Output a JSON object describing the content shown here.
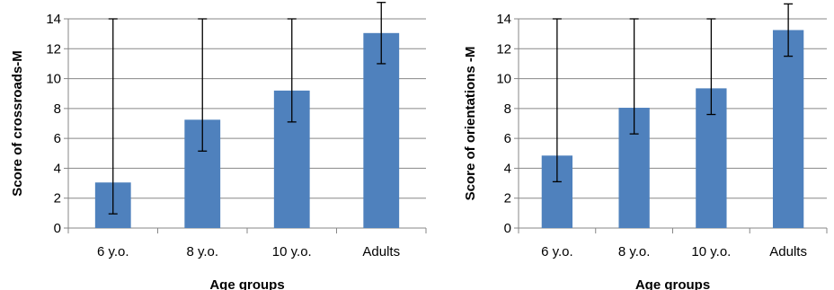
{
  "chart_data": [
    {
      "type": "bar",
      "categories": [
        "6 y.o.",
        "8 y.o.",
        "10 y.o.",
        "Adults"
      ],
      "values": [
        3.05,
        7.25,
        9.2,
        13.05
      ],
      "error": [
        2.1,
        2.1,
        2.1,
        2.05
      ],
      "xlabel": "Age groups",
      "ylabel": "Score of crossroads-M",
      "ylim": [
        0,
        14
      ],
      "yticks": [
        0,
        2,
        4,
        6,
        8,
        10,
        12,
        14
      ],
      "grid": true,
      "bar_color": "#4F81BD"
    },
    {
      "type": "bar",
      "categories": [
        "6 y.o.",
        "8 y.o.",
        "10 y.o.",
        "Adults"
      ],
      "values": [
        4.85,
        8.05,
        9.35,
        13.25
      ],
      "error": [
        1.75,
        1.75,
        1.75,
        1.75
      ],
      "xlabel": "Age groups",
      "ylabel": "Score of orientations -M",
      "ylim": [
        0,
        14
      ],
      "yticks": [
        0,
        2,
        4,
        6,
        8,
        10,
        12,
        14
      ],
      "grid": true,
      "bar_color": "#4F81BD"
    }
  ]
}
